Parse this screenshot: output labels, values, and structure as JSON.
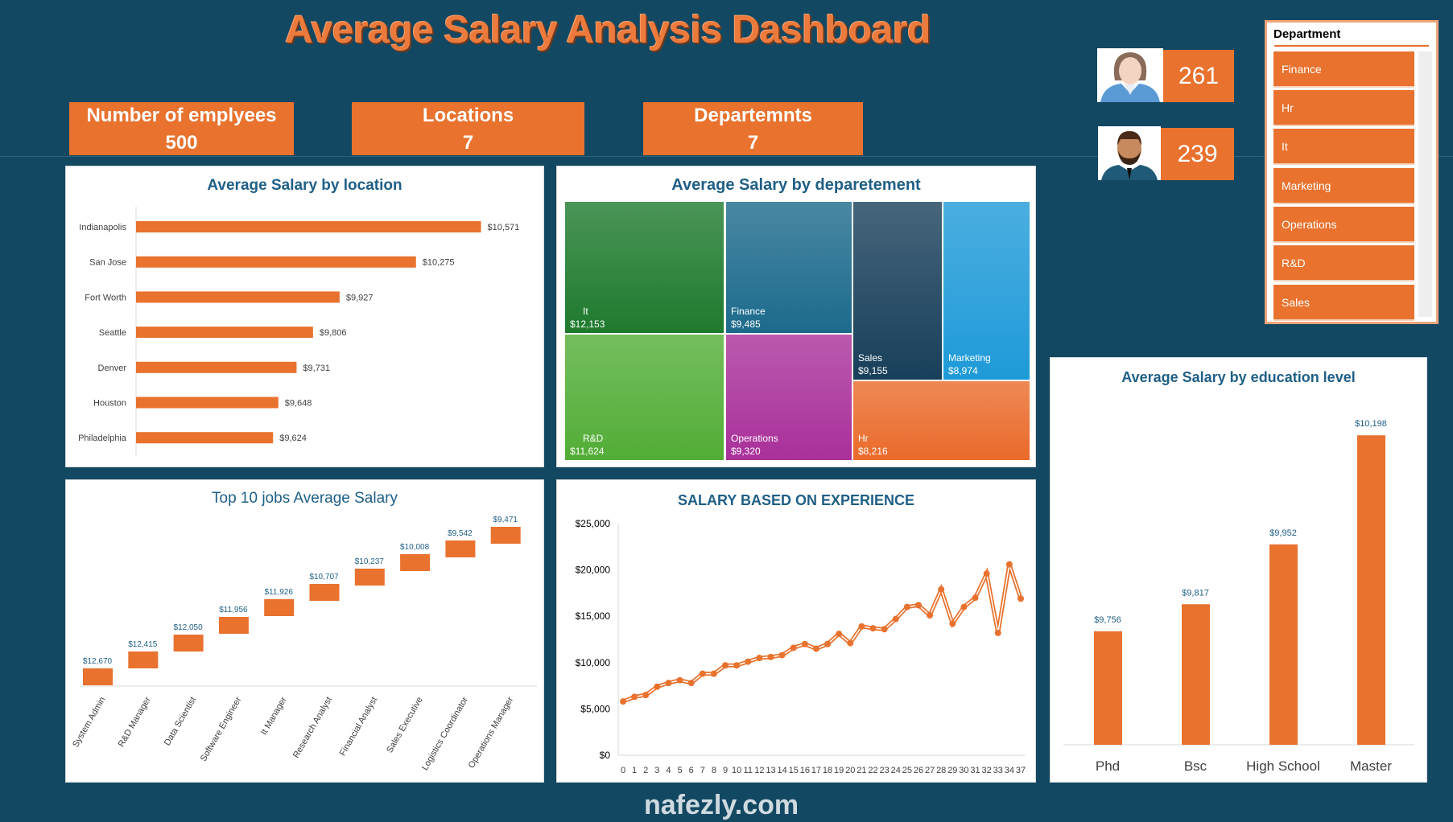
{
  "title": "Average Salary  Analysis Dashboard",
  "kpis": [
    {
      "label": "Number of emplyees",
      "value": "500"
    },
    {
      "label": "Locations",
      "value": "7"
    },
    {
      "label": "Departemnts",
      "value": "7"
    }
  ],
  "gender": {
    "female_count": "261",
    "male_count": "239"
  },
  "slicer": {
    "title": "Department",
    "items": [
      "Finance",
      "Hr",
      "It",
      "Marketing",
      "Operations",
      "R&D",
      "Sales"
    ]
  },
  "colors": {
    "bg": "#134863",
    "accent": "#E8722E",
    "title_blue": "#1f5f86"
  },
  "watermark": "nafezly.com",
  "chart_data": [
    {
      "type": "bar",
      "orientation": "horizontal",
      "title": "Average Salary  by location",
      "categories": [
        "Indianapolis",
        "San Jose",
        "Fort Worth",
        "Seattle",
        "Denver",
        "Houston",
        "Philadelphia"
      ],
      "values": [
        10571,
        10275,
        9927,
        9806,
        9731,
        9648,
        9624
      ],
      "labels": [
        "$10,571",
        "$10,275",
        "$9,927",
        "$9,806",
        "$9,731",
        "$9,648",
        "$9,624"
      ],
      "xlim": [
        9000,
        10800
      ]
    },
    {
      "type": "treemap",
      "title": "Average Salary  by deparetement",
      "items": [
        {
          "name": "It",
          "value": "$12,153",
          "color": "#1e7a2e"
        },
        {
          "name": "R&D",
          "value": "$11,624",
          "color": "#52ad36"
        },
        {
          "name": "Finance",
          "value": "$9,485",
          "color": "#1c6a8c"
        },
        {
          "name": "Operations",
          "value": "$9,320",
          "color": "#a9309a"
        },
        {
          "name": "Sales",
          "value": "$9,155",
          "color": "#183f5a"
        },
        {
          "name": "Marketing",
          "value": "$8,974",
          "color": "#1e9ad8"
        },
        {
          "name": "Hr",
          "value": "$8,216",
          "color": "#ea6a2a"
        }
      ]
    },
    {
      "type": "bar",
      "title": "Top 10 jobs Average Salary",
      "categories": [
        "System Admin",
        "R&D Manager",
        "Data Scientist",
        "Software Engineer",
        "It Manager",
        "Research Analyst",
        "Financial Analyst",
        "Sales Executive",
        "Logistics Coordinator",
        "Operations Manager"
      ],
      "values": [
        12670,
        12415,
        12050,
        11956,
        11926,
        10707,
        10237,
        10008,
        9542,
        9471
      ],
      "labels": [
        "$12,670",
        "$12,415",
        "$12,050",
        "$11,956",
        "$11,926",
        "$10,707",
        "$10,237",
        "$10,008",
        "$9,542",
        "$9,471"
      ]
    },
    {
      "type": "line",
      "title": "SALARY  BASED ON EXPERIENCE",
      "x": [
        "0",
        "1",
        "2",
        "3",
        "4",
        "5",
        "6",
        "7",
        "8",
        "9",
        "10",
        "11",
        "12",
        "13",
        "14",
        "15",
        "16",
        "17",
        "18",
        "19",
        "20",
        "21",
        "22",
        "23",
        "24",
        "25",
        "26",
        "27",
        "28",
        "29",
        "30",
        "31",
        "32",
        "33",
        "34",
        "37"
      ],
      "values": [
        5800,
        6300,
        6500,
        7400,
        7800,
        8100,
        7800,
        8800,
        8800,
        9700,
        9700,
        10100,
        10500,
        10600,
        10800,
        11600,
        12000,
        11500,
        12000,
        13100,
        12100,
        13900,
        13700,
        13600,
        14700,
        16000,
        16200,
        15100,
        17900,
        14200,
        16000,
        17000,
        19600,
        13200,
        20600,
        16900
      ],
      "yticks": [
        "$0",
        "$5,000",
        "$10,000",
        "$15,000",
        "$20,000",
        "$25,000"
      ],
      "ylim": [
        0,
        25000
      ]
    },
    {
      "type": "bar",
      "title": "Average Salary  by education level",
      "categories": [
        "Phd",
        "Bsc",
        "High School",
        "Master"
      ],
      "values": [
        9756,
        9817,
        9952,
        10198
      ],
      "labels": [
        "$9,756",
        "$9,817",
        "$9,952",
        "$10,198"
      ],
      "ylim": [
        9500,
        10300
      ]
    }
  ]
}
